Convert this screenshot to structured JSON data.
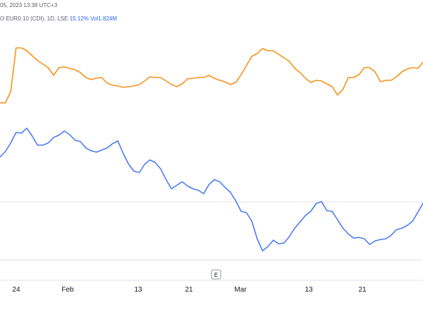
{
  "header": {
    "datetime": "05, 2023 13:38 UTC+3",
    "symbol": "O EUR0.10 (CDI), 1D, LSE",
    "change": "15.12%",
    "volume": "Vol1.824M"
  },
  "axis_button": {
    "label": "E"
  },
  "colors": {
    "orange": "#f7931a",
    "blue": "#4a7cf2",
    "grid": "#e0e3eb",
    "text": "#131722"
  },
  "chart_data": {
    "type": "line",
    "x_ticks": [
      "24",
      "Feb",
      "13",
      "21",
      "Mar",
      "13",
      "21"
    ],
    "series": [
      {
        "color": "orange",
        "values": [
          146,
          146,
          130,
          68,
          68,
          72,
          79,
          86,
          91,
          96,
          107,
          96,
          95,
          97,
          99,
          103,
          110,
          113,
          111,
          110,
          118,
          121,
          122,
          124,
          123,
          122,
          120,
          115,
          109,
          110,
          110,
          115,
          120,
          123,
          119,
          112,
          111,
          110,
          110,
          107,
          111,
          114,
          116,
          120,
          117,
          106,
          93,
          80,
          76,
          69,
          72,
          72,
          77,
          82,
          87,
          97,
          103,
          111,
          117,
          114,
          115,
          119,
          123,
          135,
          127,
          110,
          110,
          106,
          96,
          96,
          102,
          116,
          114,
          114,
          109,
          102,
          98,
          96,
          97,
          88
        ]
      },
      {
        "color": "blue",
        "values": [
          223,
          215,
          203,
          188,
          189,
          182,
          193,
          206,
          206,
          203,
          195,
          192,
          186,
          191,
          199,
          201,
          210,
          214,
          216,
          213,
          210,
          204,
          200,
          218,
          233,
          243,
          245,
          233,
          227,
          231,
          240,
          255,
          268,
          263,
          258,
          264,
          268,
          270,
          275,
          262,
          255,
          258,
          266,
          273,
          285,
          300,
          302,
          314,
          339,
          356,
          350,
          341,
          346,
          345,
          336,
          324,
          315,
          306,
          300,
          289,
          286,
          299,
          300,
          312,
          324,
          332,
          338,
          337,
          339,
          347,
          342,
          340,
          339,
          334,
          326,
          324,
          320,
          314,
          301,
          288
        ]
      }
    ]
  }
}
